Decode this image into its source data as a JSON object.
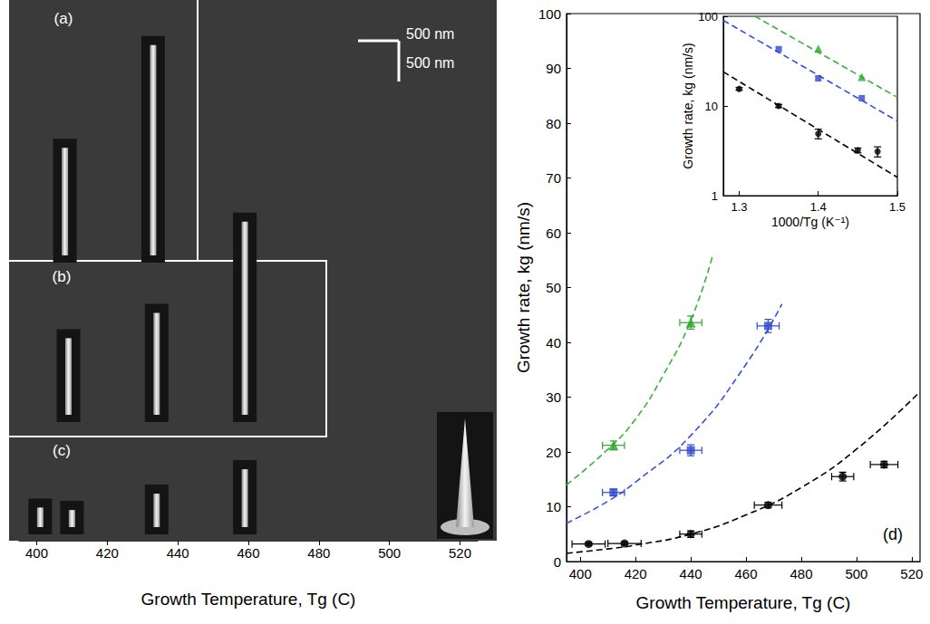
{
  "chart_data": [
    {
      "type": "schematic",
      "x_label": "Growth Temperature, Tg (C)",
      "xlim": [
        395,
        525
      ],
      "xticks": [
        400,
        420,
        440,
        460,
        480,
        500,
        520
      ],
      "scale_bars": [
        {
          "label": "500 nm",
          "length_nm": 500,
          "direction": "horizontal"
        },
        {
          "label": "500 nm",
          "length_nm": 500,
          "direction": "vertical"
        }
      ],
      "panels": [
        {
          "label": "(a)",
          "wires": [
            {
              "x": 408,
              "length_nm": 1320
            },
            {
              "x": 433,
              "length_nm": 2580
            }
          ]
        },
        {
          "label": "(b)",
          "wires": [
            {
              "x": 409,
              "length_nm": 940
            },
            {
              "x": 434,
              "length_nm": 1250
            },
            {
              "x": 459,
              "length_nm": 2370
            }
          ]
        },
        {
          "label": "(c)",
          "wires": [
            {
              "x": 401,
              "length_nm": 240
            },
            {
              "x": 410,
              "length_nm": 210
            },
            {
              "x": 434,
              "length_nm": 410
            },
            {
              "x": 459,
              "length_nm": 710
            }
          ]
        }
      ]
    },
    {
      "type": "scatter",
      "x_label": "Growth Temperature, Tg (C)",
      "y_label": "Growth rate, kg (nm/s)",
      "panel_label": "(d)",
      "xlim": [
        395,
        523
      ],
      "xticks": [
        400,
        420,
        440,
        460,
        480,
        500,
        520
      ],
      "ylim": [
        0,
        100
      ],
      "yticks": [
        0,
        10,
        20,
        30,
        40,
        50,
        60,
        70,
        80,
        90,
        100
      ],
      "grid": false,
      "series": [
        {
          "type": "scatter",
          "marker": "circle",
          "color": "#000000",
          "x": [
            403,
            416,
            440,
            468,
            495,
            510
          ],
          "values": [
            3.2,
            3.3,
            5.0,
            10.3,
            15.5,
            17.7
          ],
          "xerr": [
            6,
            6,
            4,
            5,
            4,
            5
          ],
          "yerr": [
            0.3,
            0.3,
            0.6,
            0.5,
            0.8,
            0.6
          ]
        },
        {
          "type": "scatter",
          "marker": "square",
          "color": "#2f49d0",
          "x": [
            412,
            440,
            468
          ],
          "values": [
            12.6,
            20.3,
            43.0
          ],
          "xerr": [
            4,
            4,
            4
          ],
          "yerr": [
            0.6,
            1.0,
            1.2
          ]
        },
        {
          "type": "scatter",
          "marker": "triangle",
          "color": "#2aa82a",
          "x": [
            412,
            440
          ],
          "values": [
            21.2,
            43.6
          ],
          "xerr": [
            4,
            4
          ],
          "yerr": [
            0.8,
            1.2
          ]
        },
        {
          "type": "line",
          "line_style": "dashed",
          "color": "#000000",
          "x": [
            395,
            410,
            420,
            440,
            460,
            480,
            500,
            522
          ],
          "values": [
            1.5,
            2.3,
            3.0,
            5.0,
            8.5,
            13.5,
            20.5,
            30.5
          ]
        },
        {
          "type": "line",
          "line_style": "dashed",
          "color": "#3a50e0",
          "x": [
            395,
            410,
            420,
            440,
            460,
            473
          ],
          "values": [
            7.0,
            11.0,
            14.5,
            23.0,
            36.0,
            47.0
          ]
        },
        {
          "type": "line",
          "line_style": "dashed",
          "color": "#3ab03a",
          "x": [
            395,
            410,
            420,
            430,
            440,
            448
          ],
          "values": [
            14.0,
            20.5,
            26.0,
            34.0,
            44.0,
            56.0
          ]
        }
      ]
    },
    {
      "type": "scatter",
      "x_label": "1000/Tg (K⁻¹)",
      "y_label": "Growth rate, kg (nm/s)",
      "log": "y",
      "xlim": [
        1.28,
        1.5
      ],
      "xticks": [
        1.3,
        1.4,
        1.5
      ],
      "ylim": [
        1,
        100
      ],
      "yticks": [
        1,
        10,
        100
      ],
      "grid": false,
      "series": [
        {
          "type": "scatter",
          "marker": "circle",
          "color": "#000000",
          "x": [
            1.3,
            1.35,
            1.4,
            1.45,
            1.475
          ],
          "values": [
            15.5,
            10.0,
            4.9,
            3.2,
            3.1
          ],
          "yerr": [
            0.5,
            0.4,
            0.6,
            0.2,
            0.4
          ]
        },
        {
          "type": "scatter",
          "marker": "square",
          "color": "#2f49d0",
          "x": [
            1.35,
            1.4,
            1.455
          ],
          "values": [
            43.0,
            20.3,
            12.2
          ]
        },
        {
          "type": "scatter",
          "marker": "triangle",
          "color": "#2aa82a",
          "x": [
            1.4,
            1.455
          ],
          "values": [
            43.5,
            21.0
          ]
        },
        {
          "type": "line",
          "line_style": "dashed",
          "color": "#000000",
          "x": [
            1.28,
            1.5
          ],
          "values": [
            24.0,
            1.6
          ]
        },
        {
          "type": "line",
          "line_style": "dashed",
          "color": "#3a50e0",
          "x": [
            1.28,
            1.5
          ],
          "values": [
            90.0,
            6.8
          ]
        },
        {
          "type": "line",
          "line_style": "dashed",
          "color": "#3ab03a",
          "x": [
            1.32,
            1.5
          ],
          "values": [
            100.0,
            12.5
          ]
        }
      ]
    }
  ]
}
